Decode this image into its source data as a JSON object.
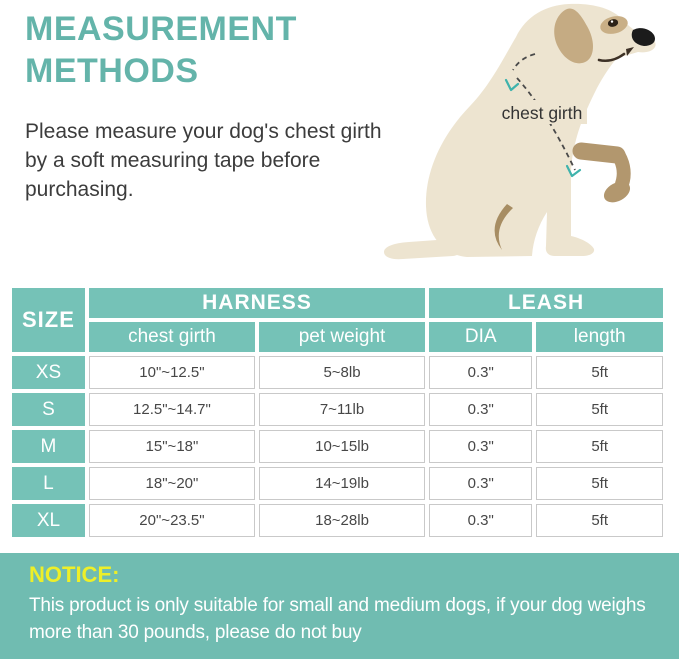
{
  "page": {
    "title": "MEASUREMENT METHODS",
    "intro_lines": [
      "Please measure your dog's chest girth",
      "by a soft measuring tape before",
      "purchasing."
    ]
  },
  "illustration": {
    "label": "chest girth"
  },
  "size_table": {
    "size_header": "SIZE",
    "group_headers": [
      {
        "label": "HARNESS",
        "span": 2
      },
      {
        "label": "LEASH",
        "span": 2
      }
    ],
    "sub_headers": [
      "chest girth",
      "pet weight",
      "DIA",
      "length"
    ],
    "rows": [
      {
        "size": "XS",
        "values": [
          "10\"~12.5\"",
          "5~8lb",
          "0.3\"",
          "5ft"
        ]
      },
      {
        "size": "S",
        "values": [
          "12.5\"~14.7\"",
          "7~11lb",
          "0.3\"",
          "5ft"
        ]
      },
      {
        "size": "M",
        "values": [
          "15\"~18\"",
          "10~15lb",
          "0.3\"",
          "5ft"
        ]
      },
      {
        "size": "L",
        "values": [
          "18\"~20\"",
          "14~19lb",
          "0.3\"",
          "5ft"
        ]
      },
      {
        "size": "XL",
        "values": [
          "20\"~23.5\"",
          "18~28lb",
          "0.3\"",
          "5ft"
        ]
      }
    ]
  },
  "notice": {
    "label": "NOTICE:",
    "lines": [
      "This product is only suitable for small and medium dogs, if your dog weighs",
      "more than 30 pounds, please do not buy"
    ]
  },
  "colors": {
    "title_teal": "#64B4AA",
    "table_teal": "#75C2B7",
    "notice_bg": "#70BCB1",
    "notice_yellow": "#EDEF29",
    "table_border_gray": "#C9C9C9",
    "dog_cream": "#EDE4D0",
    "dog_tan": "#C5AB83",
    "dog_limb_tan": "#B2976E",
    "dog_shadow_tan": "#A78D63",
    "measure_arrow_teal": "#3FB3AC"
  }
}
